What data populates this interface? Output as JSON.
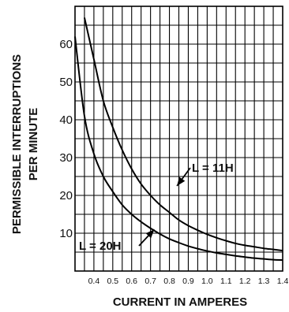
{
  "chart_data": {
    "type": "line",
    "xlabel": "CURRENT IN AMPERES",
    "ylabel_lines": [
      "PERMISSIBLE INTERRUPTIONS",
      "PER MINUTE"
    ],
    "xlim": [
      0.3,
      1.4
    ],
    "ylim": [
      0,
      70
    ],
    "x_ticks": [
      0.4,
      0.5,
      0.6,
      0.7,
      0.8,
      0.9,
      1.0,
      1.1,
      1.2,
      1.3,
      1.4
    ],
    "x_tick_labels": [
      "0.4",
      "0.5",
      "0.6",
      "0.7",
      "0.8",
      "0.9",
      "1.0",
      "1.1",
      "1.2",
      "1.3",
      "1.4"
    ],
    "y_ticks": [
      10,
      20,
      30,
      40,
      50,
      60
    ],
    "y_tick_labels": [
      "10",
      "20",
      "30",
      "40",
      "50",
      "60"
    ],
    "grid": true,
    "series": [
      {
        "name": "L = 11H",
        "x": [
          0.35,
          0.4,
          0.45,
          0.5,
          0.55,
          0.6,
          0.65,
          0.7,
          0.75,
          0.8,
          0.85,
          0.9,
          0.95,
          1.0,
          1.05,
          1.1,
          1.15,
          1.2,
          1.25,
          1.3,
          1.35,
          1.4
        ],
        "y": [
          67,
          56,
          45,
          38,
          32,
          27,
          23,
          20,
          17.5,
          15.5,
          13.5,
          12,
          10.8,
          9.7,
          8.8,
          8,
          7.3,
          6.8,
          6.4,
          6,
          5.7,
          5.4
        ]
      },
      {
        "name": "L = 20H",
        "x": [
          0.3,
          0.35,
          0.4,
          0.45,
          0.5,
          0.55,
          0.6,
          0.65,
          0.7,
          0.75,
          0.8,
          0.85,
          0.9,
          0.95,
          1.0,
          1.05,
          1.1,
          1.15,
          1.2,
          1.25,
          1.3,
          1.35,
          1.4
        ],
        "y": [
          62,
          41,
          31,
          25,
          21,
          17.5,
          15,
          13,
          11.3,
          9.8,
          8.5,
          7.5,
          6.6,
          5.9,
          5.3,
          4.8,
          4.4,
          4,
          3.7,
          3.4,
          3.2,
          3,
          2.9
        ]
      }
    ],
    "annotations": [
      {
        "text": "L = 11H",
        "series": "L = 11H",
        "points_to": [
          0.84,
          22.5
        ]
      },
      {
        "text": "L = 20H",
        "series": "L = 20H",
        "points_to": [
          0.72,
          11
        ]
      }
    ]
  }
}
